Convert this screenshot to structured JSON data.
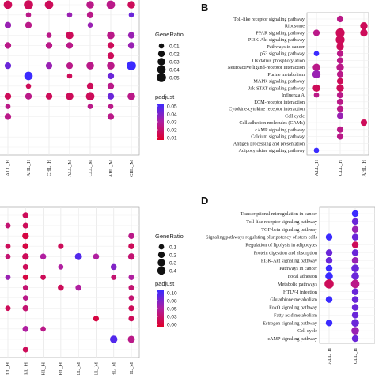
{
  "colors": {
    "low_padj": "#e0002a",
    "high_padj": "#3b2bff"
  },
  "panels": {
    "A": {
      "letter": "",
      "xticks": [
        "ALL_H",
        "AHL_H",
        "CHL_H",
        "ALL_M",
        "CLL_M",
        "AHL_M",
        "CHL_M"
      ]
    },
    "B": {
      "letter": "B",
      "xticks": [
        "ALL_H",
        "CLL_H",
        "AHL_H"
      ]
    },
    "C": {
      "letter": "",
      "xticks": [
        "ALL_H",
        "CLL_H",
        "AHL_H",
        "CHL_H",
        "ALL_M",
        "CLL_M",
        "AHL_M",
        "CHL_M"
      ]
    },
    "D": {
      "letter": "D",
      "xticks": [
        "ALL_H",
        "CLL_H",
        "AHL_H"
      ]
    }
  },
  "legend_A": {
    "size_title": "GeneRatio",
    "size_labels": [
      "0.01",
      "0.02",
      "0.03",
      "0.04",
      "0.05"
    ],
    "color_title": "padjust",
    "color_labels": [
      "0.05",
      "0.04",
      "0.03",
      "0.02",
      "0.01"
    ]
  },
  "legend_C": {
    "size_title": "GeneRatio",
    "size_labels": [
      "0.1",
      "0.2",
      "0.3",
      "0.4"
    ],
    "color_title": "padjust",
    "color_labels": [
      "0.10",
      "0.08",
      "0.05",
      "0.03",
      "0.00"
    ]
  },
  "chart_data": [
    {
      "panel": "A",
      "type": "scatter",
      "categories": [
        "ALL_H",
        "AHL_H",
        "CHL_H",
        "ALL_M",
        "CLL_M",
        "AHL_M",
        "CHL_M"
      ],
      "rows": 15,
      "points": [
        [
          0,
          0,
          0.04,
          0.01
        ],
        [
          1,
          0,
          0.05,
          0.01
        ],
        [
          2,
          0,
          0.04,
          0.01
        ],
        [
          4,
          0,
          0.03,
          0.02
        ],
        [
          5,
          0,
          0.04,
          0.02
        ],
        [
          6,
          0,
          0.03,
          0.01
        ],
        [
          1,
          1,
          0.01,
          0.02
        ],
        [
          3,
          1,
          0.01,
          0.03
        ],
        [
          4,
          1,
          0.02,
          0.02
        ],
        [
          6,
          1,
          0.01,
          0.04
        ],
        [
          0,
          2,
          0.02,
          0.03
        ],
        [
          1,
          2,
          0.02,
          0.02
        ],
        [
          4,
          2,
          0.01,
          0.03
        ],
        [
          2,
          3,
          0.01,
          0.02
        ],
        [
          3,
          3,
          0.03,
          0.01
        ],
        [
          5,
          3,
          0.03,
          0.02
        ],
        [
          6,
          3,
          0.02,
          0.03
        ],
        [
          0,
          4,
          0.02,
          0.02
        ],
        [
          2,
          4,
          0.02,
          0.02
        ],
        [
          3,
          4,
          0.02,
          0.02
        ],
        [
          5,
          4,
          0.02,
          0.01
        ],
        [
          6,
          4,
          0.02,
          0.03
        ],
        [
          5,
          5,
          0.02,
          0.01
        ],
        [
          0,
          6,
          0.02,
          0.04
        ],
        [
          2,
          6,
          0.02,
          0.03
        ],
        [
          3,
          6,
          0.02,
          0.02
        ],
        [
          4,
          6,
          0.03,
          0.02
        ],
        [
          5,
          6,
          0.03,
          0.02
        ],
        [
          6,
          6,
          0.05,
          0.05
        ],
        [
          1,
          7,
          0.04,
          0.05
        ],
        [
          3,
          7,
          0.01,
          0.01
        ],
        [
          5,
          7,
          0.02,
          0.04
        ],
        [
          1,
          8,
          0.01,
          0.01
        ],
        [
          4,
          8,
          0.02,
          0.01
        ],
        [
          5,
          8,
          0.02,
          0.02
        ],
        [
          0,
          9,
          0.02,
          0.01
        ],
        [
          1,
          9,
          0.02,
          0.02
        ],
        [
          2,
          9,
          0.02,
          0.01
        ],
        [
          3,
          9,
          0.03,
          0.01
        ],
        [
          4,
          9,
          0.04,
          0.01
        ],
        [
          5,
          9,
          0.02,
          0.04
        ],
        [
          6,
          9,
          0.03,
          0.02
        ],
        [
          0,
          10,
          0.01,
          0.02
        ],
        [
          4,
          10,
          0.01,
          0.02
        ],
        [
          5,
          10,
          0.01,
          0.02
        ],
        [
          0,
          11,
          0.02,
          0.02
        ],
        [
          5,
          11,
          0.02,
          0.02
        ]
      ]
    },
    {
      "panel": "B",
      "type": "scatter",
      "categories": [
        "ALL_H",
        "CLL_H",
        "AHL_H"
      ],
      "rows": [
        "Toll-like receptor signaling pathway",
        "Ribosome",
        "PPAR signaling pathway",
        "PI3K-Akt signaling pathway",
        "Pathways in cancer",
        "p53 signaling pathway",
        "Oxidative phosphorylation",
        "Neuroactive ligand-receptor interaction",
        "Purine metabolism",
        "MAPK signaling pathway",
        "Jak-STAT signaling pathway",
        "Influenza A",
        "ECM-receptor interaction",
        "Cytokine-cytokine receptor interaction",
        "Cell cycle",
        "Cell adhesion molecules (CAMs)",
        "cAMP signaling pathway",
        "Calcium signaling pathway",
        "Antigen processing and presentation",
        "Adipocytokine signaling pathway"
      ],
      "points": [
        [
          1,
          0,
          0.02,
          0.02
        ],
        [
          2,
          1,
          0.03,
          0.01
        ],
        [
          0,
          2,
          0.02,
          0.02
        ],
        [
          1,
          2,
          0.05,
          0.01
        ],
        [
          2,
          2,
          0.03,
          0.01
        ],
        [
          1,
          3,
          0.05,
          0.01
        ],
        [
          1,
          4,
          0.03,
          0.01
        ],
        [
          0,
          5,
          0.01,
          0.05
        ],
        [
          1,
          5,
          0.02,
          0.02
        ],
        [
          1,
          6,
          0.02,
          0.02
        ],
        [
          0,
          7,
          0.03,
          0.02
        ],
        [
          1,
          7,
          0.03,
          0.02
        ],
        [
          0,
          8,
          0.04,
          0.03
        ],
        [
          1,
          8,
          0.02,
          0.02
        ],
        [
          1,
          9,
          0.02,
          0.01
        ],
        [
          0,
          10,
          0.03,
          0.01
        ],
        [
          1,
          10,
          0.03,
          0.01
        ],
        [
          0,
          11,
          0.01,
          0.02
        ],
        [
          1,
          11,
          0.02,
          0.02
        ],
        [
          1,
          12,
          0.02,
          0.02
        ],
        [
          1,
          13,
          0.02,
          0.02
        ],
        [
          1,
          14,
          0.02,
          0.03
        ],
        [
          2,
          15,
          0.02,
          0.01
        ],
        [
          1,
          16,
          0.02,
          0.02
        ],
        [
          1,
          17,
          0.02,
          0.02
        ],
        [
          0,
          19,
          0.01,
          0.05
        ]
      ]
    },
    {
      "panel": "C",
      "type": "scatter",
      "categories": [
        "ALL_H",
        "CLL_H",
        "AHL_H",
        "CHL_H",
        "ALL_M",
        "CLL_M",
        "AHL_M",
        "CHL_M"
      ],
      "rows": 14,
      "points": [
        [
          1,
          0,
          0.15,
          0.02
        ],
        [
          0,
          1,
          0.1,
          0.03
        ],
        [
          1,
          1,
          0.12,
          0.02
        ],
        [
          1,
          2,
          0.2,
          0.01
        ],
        [
          7,
          2,
          0.15,
          0.04
        ],
        [
          0,
          3,
          0.1,
          0.02
        ],
        [
          1,
          3,
          0.15,
          0.01
        ],
        [
          3,
          3,
          0.12,
          0.02
        ],
        [
          7,
          3,
          0.15,
          0.02
        ],
        [
          0,
          4,
          0.1,
          0.03
        ],
        [
          1,
          4,
          0.2,
          0.02
        ],
        [
          2,
          4,
          0.15,
          0.05
        ],
        [
          4,
          4,
          0.25,
          0.09
        ],
        [
          5,
          4,
          0.15,
          0.05
        ],
        [
          7,
          4,
          0.2,
          0.03
        ],
        [
          1,
          5,
          0.12,
          0.02
        ],
        [
          3,
          5,
          0.1,
          0.05
        ],
        [
          6,
          5,
          0.15,
          0.07
        ],
        [
          0,
          6,
          0.1,
          0.06
        ],
        [
          1,
          6,
          0.12,
          0.01
        ],
        [
          2,
          6,
          0.1,
          0.02
        ],
        [
          6,
          6,
          0.1,
          0.03
        ],
        [
          7,
          6,
          0.12,
          0.05
        ],
        [
          1,
          7,
          0.1,
          0.03
        ],
        [
          3,
          7,
          0.15,
          0.02
        ],
        [
          4,
          7,
          0.15,
          0.05
        ],
        [
          7,
          7,
          0.12,
          0.03
        ],
        [
          1,
          8,
          0.1,
          0.04
        ],
        [
          7,
          8,
          0.1,
          0.03
        ],
        [
          0,
          9,
          0.1,
          0.02
        ],
        [
          1,
          9,
          0.15,
          0.03
        ],
        [
          7,
          9,
          0.12,
          0.02
        ],
        [
          5,
          10,
          0.12,
          0.01
        ],
        [
          7,
          10,
          0.12,
          0.02
        ],
        [
          1,
          11,
          0.15,
          0.05
        ],
        [
          2,
          11,
          0.1,
          0.04
        ],
        [
          6,
          12,
          0.3,
          0.09
        ],
        [
          7,
          12,
          0.25,
          0.04
        ],
        [
          1,
          13,
          0.12,
          0.02
        ]
      ]
    },
    {
      "panel": "D",
      "type": "scatter",
      "categories": [
        "ALL_H",
        "CLL_H",
        "AHL_H"
      ],
      "rows": [
        "Transcriptional misregulation in cancer",
        "Toll-like receptor signaling pathway",
        "TGF-beta signaling pathway",
        "Signaling pathways regulating pluripotency of stem cells",
        "Regulation of lipolysis in adipocytes",
        "Protein digestion and absorption",
        "PI3K-Akt signaling pathway",
        "Pathways in cancer",
        "Focal adhesion",
        "Metabolic pathways",
        "HTLV-I infection",
        "Glutathione metabolism",
        "FoxO signaling pathway",
        "Fatty acid metabolism",
        "Estrogen signaling pathway",
        "Cell cycle",
        "cAMP signaling pathway"
      ],
      "points": [
        [
          1,
          0,
          0.02,
          0.05
        ],
        [
          1,
          1,
          0.02,
          0.04
        ],
        [
          1,
          2,
          0.02,
          0.03
        ],
        [
          0,
          3,
          0.02,
          0.05
        ],
        [
          1,
          3,
          0.02,
          0.04
        ],
        [
          1,
          4,
          0.02,
          0.01
        ],
        [
          0,
          5,
          0.02,
          0.04
        ],
        [
          1,
          5,
          0.02,
          0.04
        ],
        [
          0,
          6,
          0.02,
          0.04
        ],
        [
          1,
          6,
          0.02,
          0.03
        ],
        [
          0,
          7,
          0.02,
          0.05
        ],
        [
          1,
          7,
          0.03,
          0.04
        ],
        [
          0,
          8,
          0.03,
          0.05
        ],
        [
          1,
          8,
          0.03,
          0.04
        ],
        [
          0,
          9,
          0.05,
          0.01
        ],
        [
          1,
          9,
          0.04,
          0.02
        ],
        [
          1,
          10,
          0.02,
          0.04
        ],
        [
          0,
          11,
          0.02,
          0.05
        ],
        [
          1,
          11,
          0.02,
          0.04
        ],
        [
          1,
          12,
          0.02,
          0.04
        ],
        [
          1,
          13,
          0.02,
          0.04
        ],
        [
          0,
          14,
          0.02,
          0.05
        ],
        [
          1,
          14,
          0.03,
          0.04
        ],
        [
          1,
          15,
          0.03,
          0.03
        ],
        [
          1,
          16,
          0.02,
          0.04
        ]
      ]
    }
  ]
}
